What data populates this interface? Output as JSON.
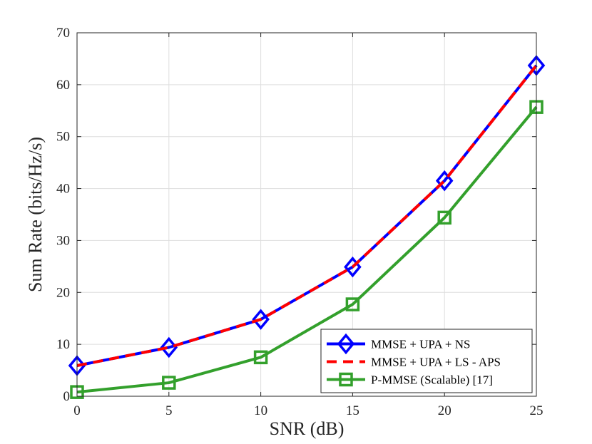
{
  "chart_data": {
    "type": "line",
    "title": "",
    "xlabel": "SNR (dB)",
    "ylabel": "Sum Rate (bits/Hz/s)",
    "xlim": [
      0,
      25
    ],
    "ylim": [
      0,
      70
    ],
    "xticks": [
      0,
      5,
      10,
      15,
      20,
      25
    ],
    "yticks": [
      0,
      10,
      20,
      30,
      40,
      50,
      60,
      70
    ],
    "grid": true,
    "legend_position": "bottom-right",
    "x": [
      0,
      5,
      10,
      15,
      20,
      25
    ],
    "series": [
      {
        "name": "MMSE + UPA + NS",
        "values": [
          5.9,
          9.4,
          14.8,
          24.9,
          41.5,
          63.7
        ],
        "color": "#0000ff",
        "line_style": "solid",
        "marker": "diamond"
      },
      {
        "name": "MMSE + UPA + LS - APS",
        "values": [
          5.9,
          9.4,
          14.8,
          24.9,
          41.5,
          63.7
        ],
        "color": "#ff0000",
        "line_style": "dashed",
        "marker": "none"
      },
      {
        "name": "P-MMSE (Scalable) [17]",
        "values": [
          0.8,
          2.6,
          7.5,
          17.7,
          34.4,
          55.7
        ],
        "color": "#33a02c",
        "line_style": "solid",
        "marker": "square"
      }
    ]
  }
}
